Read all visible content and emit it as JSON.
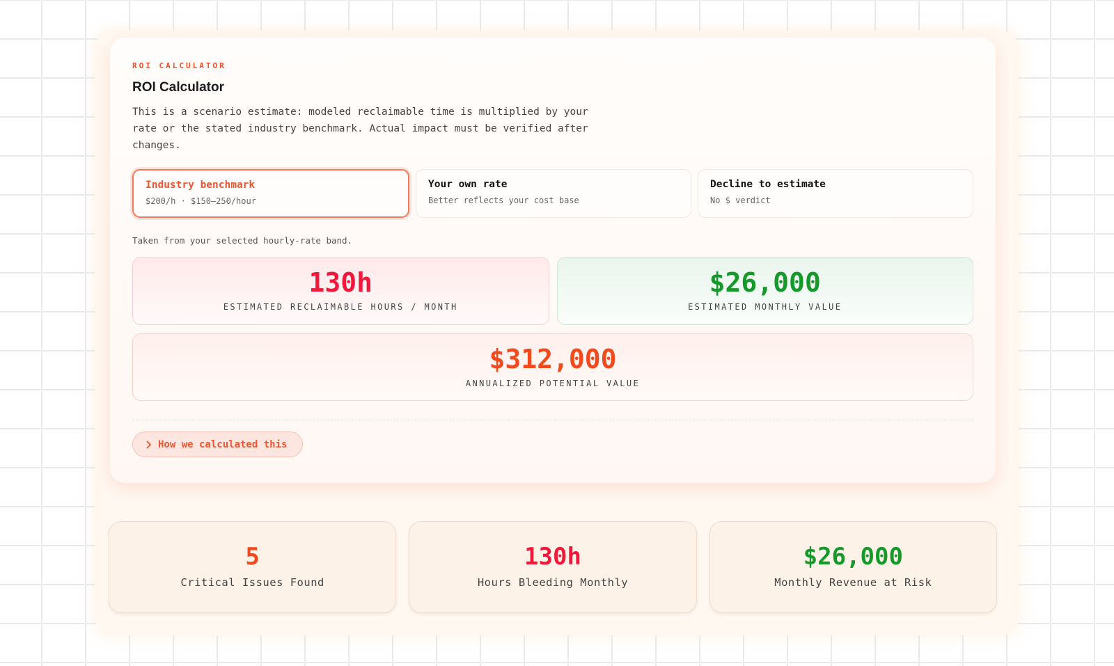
{
  "eyebrow": "ROI CALCULATOR",
  "title": "ROI Calculator",
  "description": "This is a scenario estimate: modeled reclaimable time is multiplied by your rate or the stated industry benchmark. Actual impact must be verified after changes.",
  "options": [
    {
      "title": "Industry benchmark",
      "subtitle": "$200/h · $150–250/hour"
    },
    {
      "title": "Your own rate",
      "subtitle": "Better reflects your cost base"
    },
    {
      "title": "Decline to estimate",
      "subtitle": "No $ verdict"
    }
  ],
  "note": "Taken from your selected hourly-rate band.",
  "metrics": [
    {
      "value": "130h",
      "label": "ESTIMATED RECLAIMABLE HOURS / MONTH"
    },
    {
      "value": "$26,000",
      "label": "ESTIMATED MONTHLY VALUE"
    },
    {
      "value": "$312,000",
      "label": "ANNUALIZED POTENTIAL VALUE"
    }
  ],
  "details_button": "How we calculated this",
  "stats": [
    {
      "value": "5",
      "label": "Critical Issues Found"
    },
    {
      "value": "130h",
      "label": "Hours Bleeding Monthly"
    },
    {
      "value": "$26,000",
      "label": "Monthly Revenue at Risk"
    }
  ]
}
